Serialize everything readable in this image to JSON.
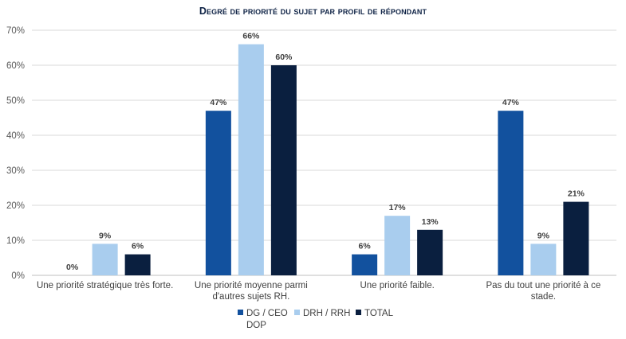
{
  "chart_data": {
    "type": "bar",
    "title": "Degré de priorité du sujet par profil de répondant",
    "categories": [
      [
        "Une priorité stratégique très forte."
      ],
      [
        "Une priorité moyenne parmi",
        "d'autres sujets RH."
      ],
      [
        "Une priorité faible."
      ],
      [
        "Pas du tout une priorité à ce",
        "stade."
      ]
    ],
    "series": [
      {
        "name": "DG / CEO",
        "name_line2": "DOP",
        "color": "#12519e",
        "values": [
          0,
          47,
          6,
          47
        ]
      },
      {
        "name": "DRH / RRH",
        "color": "#a9cdee",
        "values": [
          9,
          66,
          17,
          9
        ]
      },
      {
        "name": "TOTAL",
        "color": "#0a1f3f",
        "values": [
          6,
          60,
          13,
          21
        ]
      }
    ],
    "ylim": [
      0,
      70
    ],
    "yticks": [
      "0%",
      "10%",
      "20%",
      "30%",
      "40%",
      "50%",
      "60%",
      "70%"
    ],
    "value_suffix": "%",
    "legend_position": "bottom"
  }
}
